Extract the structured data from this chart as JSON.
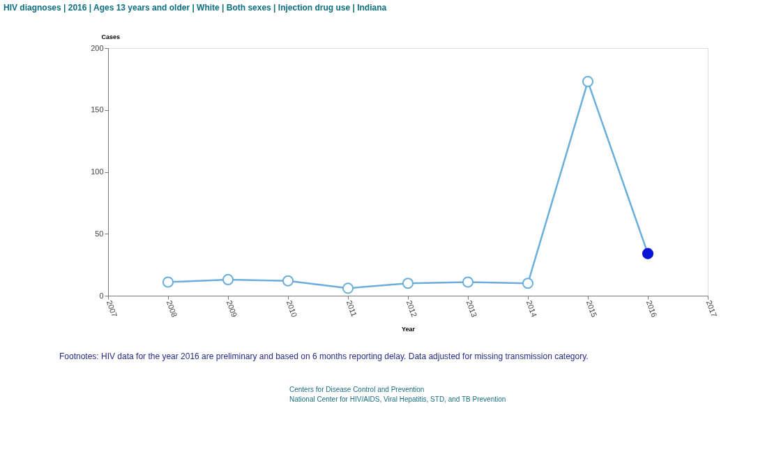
{
  "chart_data": {
    "type": "line",
    "title": "HIV diagnoses | 2016 | Ages 13 years and older | White | Both sexes | Injection drug use | Indiana",
    "xlabel": "Year",
    "ylabel": "Cases",
    "x": [
      2008,
      2009,
      2010,
      2011,
      2012,
      2013,
      2014,
      2015,
      2016
    ],
    "series": [
      {
        "color": "#6aaedc",
        "colors": [
          "#6aaedc",
          "#6aaedc",
          "#6aaedc",
          "#6aaedc",
          "#6aaedc",
          "#6aaedc",
          "#6aaedc",
          "#6aaedc",
          "#0a14d8"
        ],
        "values": [
          11,
          13,
          12,
          6,
          10,
          11,
          10,
          173,
          34
        ]
      }
    ],
    "xlim": [
      2007,
      2017
    ],
    "xticks": [
      2007,
      2008,
      2009,
      2010,
      2011,
      2012,
      2013,
      2014,
      2015,
      2016,
      2017
    ],
    "ylim": [
      0,
      200
    ],
    "yticks": [
      0,
      50,
      100,
      150,
      200
    ],
    "grid": false,
    "marker": "circle",
    "line_style": "solid",
    "annotations": [
      "Footnotes:  HIV data for the year 2016 are preliminary and based on 6 months reporting delay. Data adjusted for missing transmission category.",
      "Centers for Disease Control and Prevention",
      "National Center for HIV/AIDS, Viral Hepatitis, STD, and TB Prevention"
    ]
  }
}
